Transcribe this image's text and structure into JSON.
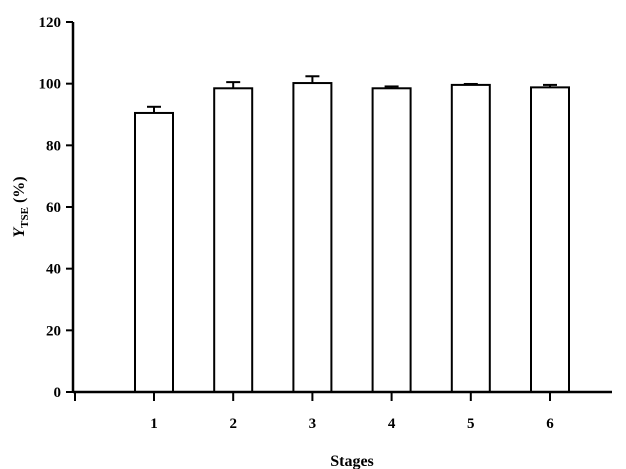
{
  "chart_data": {
    "type": "bar",
    "categories": [
      "1",
      "2",
      "3",
      "4",
      "5",
      "6"
    ],
    "values": [
      90.5,
      98.5,
      100.2,
      98.5,
      99.6,
      98.8
    ],
    "errors": [
      2.0,
      2.0,
      2.2,
      0.6,
      0.3,
      0.8
    ],
    "title": "",
    "xlabel": "Stages",
    "ylabel": {
      "main": "Y",
      "subscript": "TSE",
      "suffix": " (%)"
    },
    "ylim": [
      0,
      120
    ],
    "yticks": [
      "0",
      "20",
      "40",
      "60",
      "80",
      "100",
      "120"
    ],
    "grid": false,
    "legend": "none",
    "colors": {
      "bar_fill": "#ffffff",
      "bar_stroke": "#000000",
      "axis": "#000000"
    }
  }
}
